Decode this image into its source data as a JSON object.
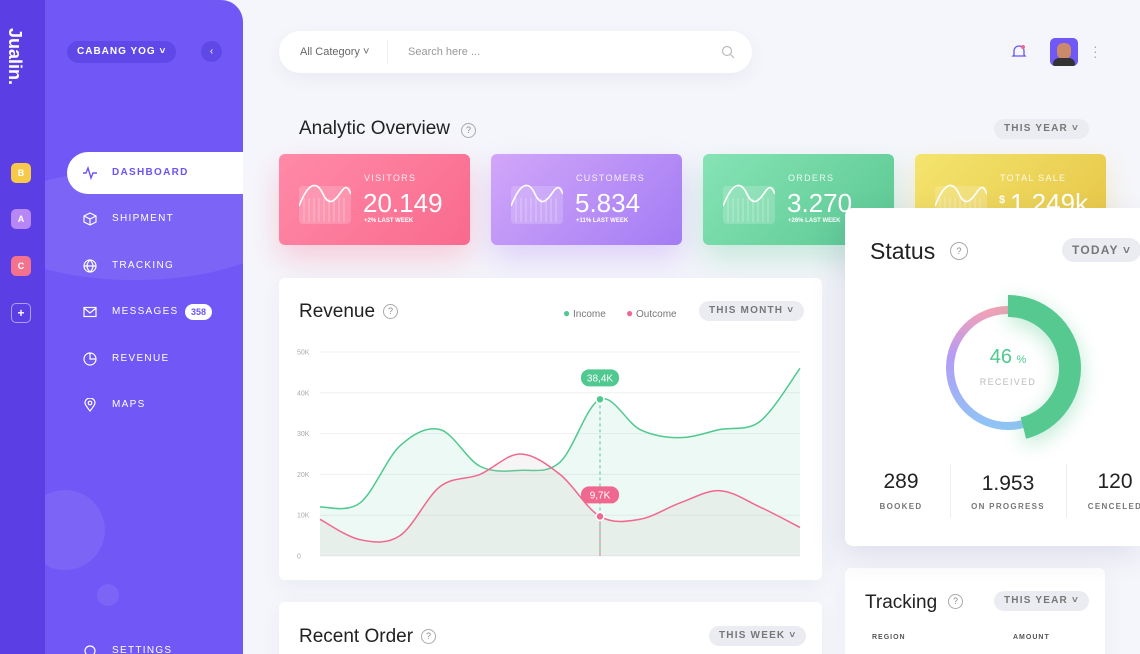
{
  "brand": "Jualin.",
  "workspace_badges": [
    "B",
    "A",
    "C",
    "+"
  ],
  "user_menu": "CABANG YOG",
  "nav": [
    {
      "label": "DASHBOARD"
    },
    {
      "label": "SHIPMENT"
    },
    {
      "label": "TRACKING"
    },
    {
      "label": "MESSAGES",
      "badge": "358"
    },
    {
      "label": "REVENUE"
    },
    {
      "label": "MAPS"
    },
    {
      "label": "SETTINGS"
    }
  ],
  "search": {
    "category": "All Category",
    "placeholder": "Search here ..."
  },
  "overview": {
    "title": "Analytic Overview",
    "help": "?",
    "period": "THIS YEAR",
    "cards": [
      {
        "label": "VISITORS",
        "value": "20.149",
        "change": "+2% LAST WEEK"
      },
      {
        "label": "CUSTOMERS",
        "value": "5.834",
        "change": "+11% LAST WEEK"
      },
      {
        "label": "ORDERS",
        "value": "3.270",
        "change": "+26% LAST WEEK"
      },
      {
        "label": "TOTAL SALE",
        "currency": "$",
        "value": "1.249k"
      }
    ]
  },
  "revenue": {
    "title": "Revenue",
    "help": "?",
    "period": "THIS MONTH",
    "chart": {
      "type": "line",
      "ylim": [
        0,
        50000
      ],
      "yticks": [
        0,
        {
          "value": 10000,
          "label": "10K"
        },
        {
          "value": 20000,
          "label": "20K"
        },
        {
          "value": 30000,
          "label": "30K"
        },
        {
          "value": 40000,
          "label": "40K"
        },
        {
          "value": 50000,
          "label": "50K"
        }
      ],
      "grid": true,
      "series": [
        {
          "name": "Income",
          "color": "#4fc98f",
          "values": [
            12000,
            13000,
            27000,
            31000,
            22000,
            21000,
            23000,
            38400,
            31000,
            29000,
            31000,
            33000,
            46000
          ],
          "value_labels": [
            null,
            null,
            null,
            null,
            null,
            null,
            null,
            "38,4K",
            null,
            null,
            null,
            null,
            null
          ]
        },
        {
          "name": "Outcome",
          "color": "#f0688f",
          "values": [
            9000,
            4000,
            5000,
            17000,
            20000,
            25000,
            20000,
            9700,
            9000,
            13000,
            16000,
            12000,
            7000
          ],
          "value_labels": [
            null,
            null,
            null,
            null,
            null,
            null,
            null,
            "9,7K",
            null,
            null,
            null,
            null,
            null
          ]
        }
      ]
    }
  },
  "status": {
    "title": "Status",
    "help": "?",
    "period": "TODAY",
    "percent": 46,
    "percent_unit": "%",
    "percent_label": "RECEIVED",
    "stats": [
      {
        "value": "289",
        "label": "BOOKED"
      },
      {
        "value": "1.953",
        "label": "ON PROGRESS"
      },
      {
        "value": "120",
        "label": "CENCELED"
      }
    ]
  },
  "recent_order": {
    "title": "Recent Order",
    "help": "?",
    "period": "THIS WEEK"
  },
  "tracking": {
    "title": "Tracking",
    "help": "?",
    "period": "THIS YEAR",
    "columns": [
      "REGION",
      "AMOUNT"
    ]
  }
}
